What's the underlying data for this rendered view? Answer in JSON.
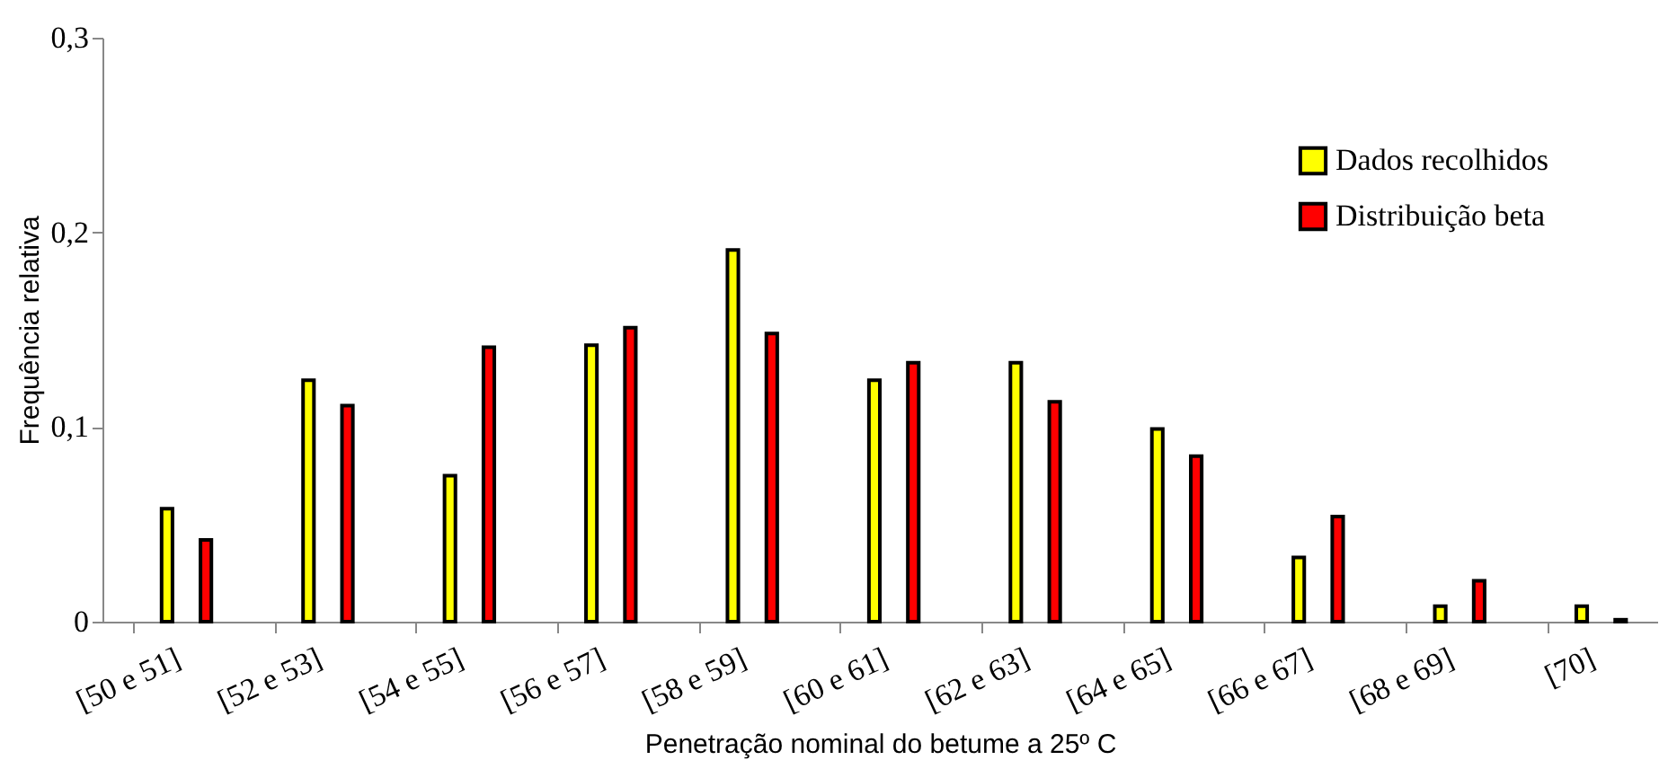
{
  "chart_data": {
    "type": "bar",
    "xlabel": "Penetração nominal do betume a 25º C",
    "ylabel": "Frequência relativa",
    "categories": [
      "[50 e 51]",
      "[52 e 53]",
      "[54 e 55]",
      "[56 e 57]",
      "[58 e 59]",
      "[60 e 61]",
      "[62 e 63]",
      "[64 e 65]",
      "[66 e 67]",
      "[68 e 69]",
      "[70]"
    ],
    "series": [
      {
        "name": "Dados recolhidos",
        "color": "#ffff00",
        "values": [
          0.058,
          0.124,
          0.075,
          0.142,
          0.191,
          0.124,
          0.133,
          0.099,
          0.033,
          0.008,
          0.008
        ]
      },
      {
        "name": "Distribuição beta",
        "color": "#ff0000",
        "values": [
          0.042,
          0.111,
          0.141,
          0.151,
          0.148,
          0.133,
          0.113,
          0.085,
          0.054,
          0.021,
          0.001
        ]
      }
    ],
    "ylim": [
      0,
      0.3
    ],
    "yticks": [
      0,
      {
        "value": 0.1,
        "label": "0,1"
      },
      {
        "value": 0.2,
        "label": "0,2"
      },
      {
        "value": 0.3,
        "label": "0,3"
      }
    ],
    "grid": false,
    "legend": "top right"
  }
}
